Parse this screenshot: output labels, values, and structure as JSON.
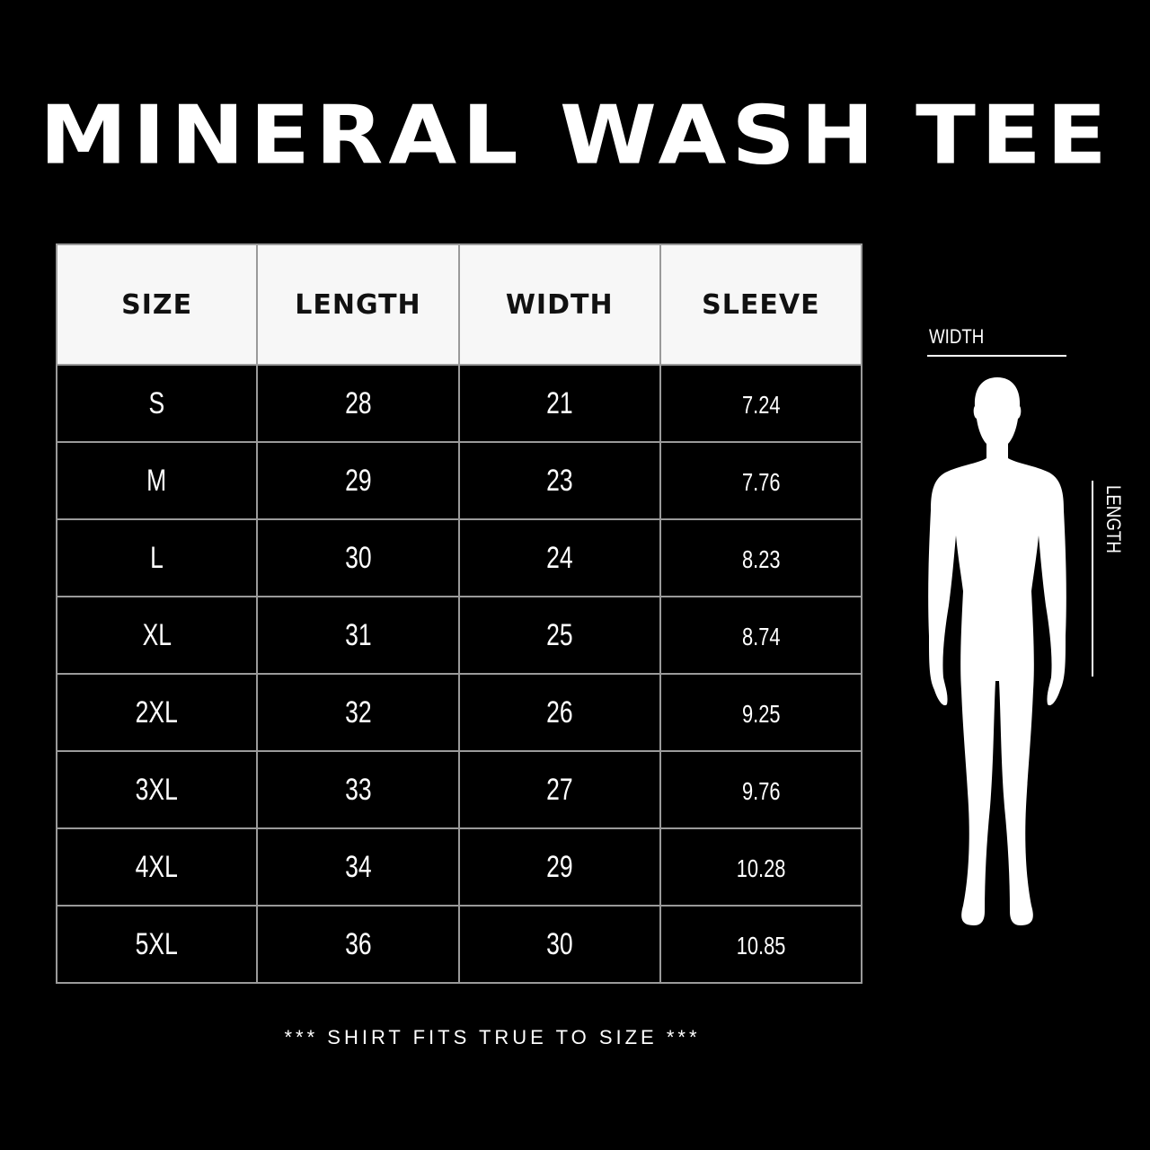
{
  "title": "MINERAL WASH TEE",
  "table": {
    "headers": [
      "SIZE",
      "LENGTH",
      "WIDTH",
      "SLEEVE"
    ],
    "rows": [
      [
        "S",
        "28",
        "21",
        "7.24"
      ],
      [
        "M",
        "29",
        "23",
        "7.76"
      ],
      [
        "L",
        "30",
        "24",
        "8.23"
      ],
      [
        "XL",
        "31",
        "25",
        "8.74"
      ],
      [
        "2XL",
        "32",
        "26",
        "9.25"
      ],
      [
        "3XL",
        "33",
        "27",
        "9.76"
      ],
      [
        "4XL",
        "34",
        "29",
        "10.28"
      ],
      [
        "5XL",
        "36",
        "30",
        "10.85"
      ]
    ]
  },
  "figure": {
    "width_label": "WIDTH",
    "length_label": "LENGTH",
    "icon": "human-silhouette-icon"
  },
  "footer": "*** SHIRT FITS TRUE TO SIZE ***"
}
